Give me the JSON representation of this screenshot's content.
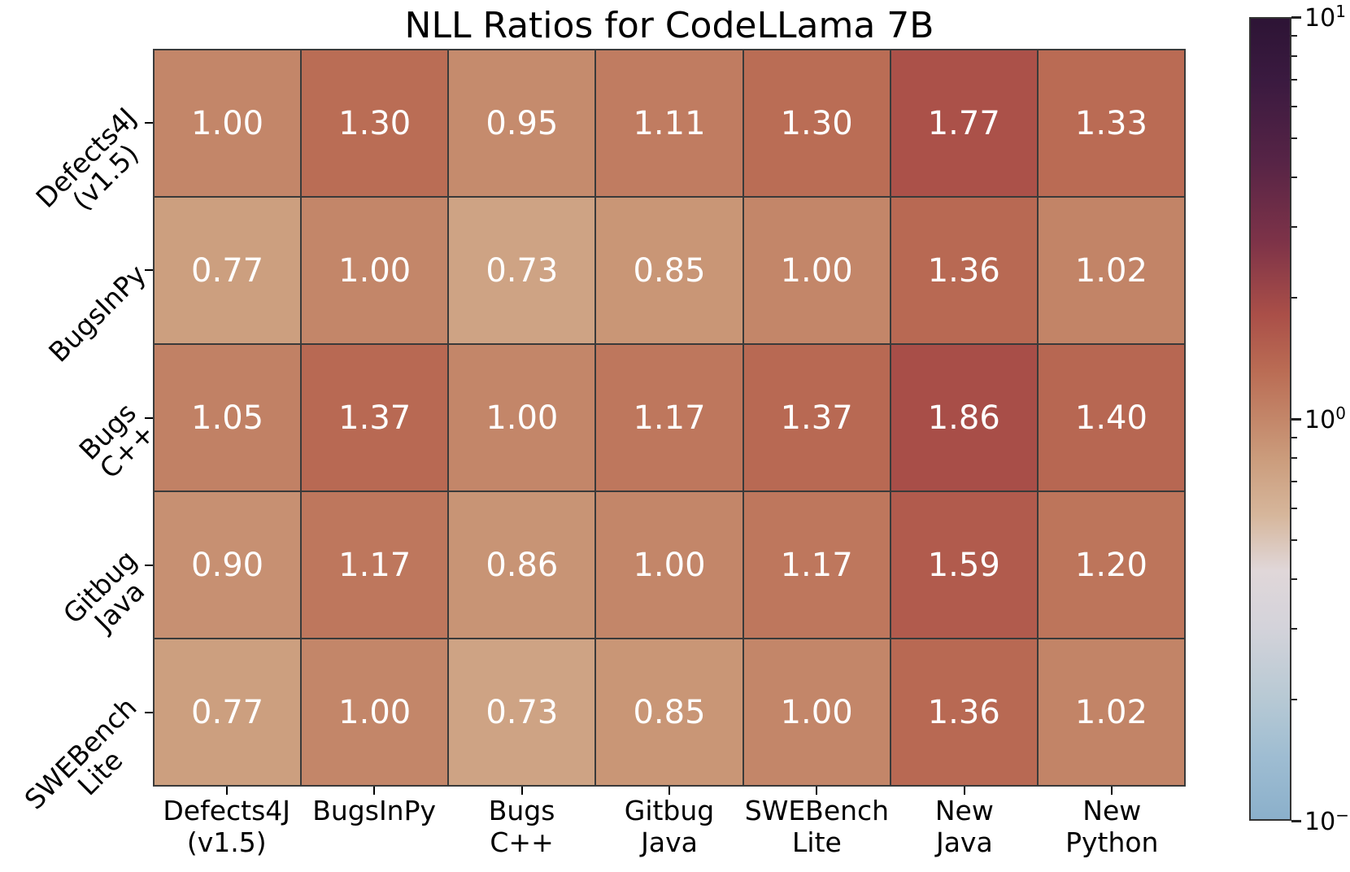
{
  "title": "NLL Ratios for CodeLLama 7B",
  "chart_data": {
    "type": "heatmap",
    "title": "NLL Ratios for CodeLLama 7B",
    "row_labels": [
      [
        "Defects4J",
        "(v1.5)"
      ],
      [
        "BugsInPy"
      ],
      [
        "Bugs",
        "C++"
      ],
      [
        "Gitbug",
        "Java"
      ],
      [
        "SWEBench",
        "Lite"
      ]
    ],
    "col_labels": [
      [
        "Defects4J",
        "(v1.5)"
      ],
      [
        "BugsInPy"
      ],
      [
        "Bugs",
        "C++"
      ],
      [
        "Gitbug",
        "Java"
      ],
      [
        "SWEBench",
        "Lite"
      ],
      [
        "New",
        "Java"
      ],
      [
        "New",
        "Python"
      ]
    ],
    "values": [
      [
        1.0,
        1.3,
        0.95,
        1.11,
        1.3,
        1.77,
        1.33
      ],
      [
        0.77,
        1.0,
        0.73,
        0.85,
        1.0,
        1.36,
        1.02
      ],
      [
        1.05,
        1.37,
        1.0,
        1.17,
        1.37,
        1.86,
        1.4
      ],
      [
        0.9,
        1.17,
        0.86,
        1.0,
        1.17,
        1.59,
        1.2
      ],
      [
        0.77,
        1.0,
        0.73,
        0.85,
        1.0,
        1.36,
        1.02
      ]
    ],
    "cell_text_color": "#ffffff",
    "grid_line_color": "#3a3a3a",
    "colorbar": {
      "scale": "log10",
      "min": 0.1,
      "max": 10,
      "major_ticks": [
        {
          "base": "10",
          "exponent": "1",
          "value": 10
        },
        {
          "base": "10",
          "exponent": "0",
          "value": 1
        },
        {
          "base": "10",
          "exponent": "−1",
          "value": 0.1
        }
      ],
      "colormap_stops": [
        {
          "t": 0.0,
          "color": "#8bb0cb"
        },
        {
          "t": 0.08,
          "color": "#9fbdd2"
        },
        {
          "t": 0.15,
          "color": "#b7c9d4"
        },
        {
          "t": 0.24,
          "color": "#d4d3da"
        },
        {
          "t": 0.31,
          "color": "#e0d7d9"
        },
        {
          "t": 0.38,
          "color": "#d6b69b"
        },
        {
          "t": 0.45,
          "color": "#cb9c7c"
        },
        {
          "t": 0.5,
          "color": "#c38669"
        },
        {
          "t": 0.56,
          "color": "#ba6c54"
        },
        {
          "t": 0.63,
          "color": "#aa4f48"
        },
        {
          "t": 0.72,
          "color": "#7e3348"
        },
        {
          "t": 0.82,
          "color": "#572446"
        },
        {
          "t": 0.92,
          "color": "#3b1a40"
        },
        {
          "t": 1.0,
          "color": "#2d1435"
        }
      ]
    }
  }
}
